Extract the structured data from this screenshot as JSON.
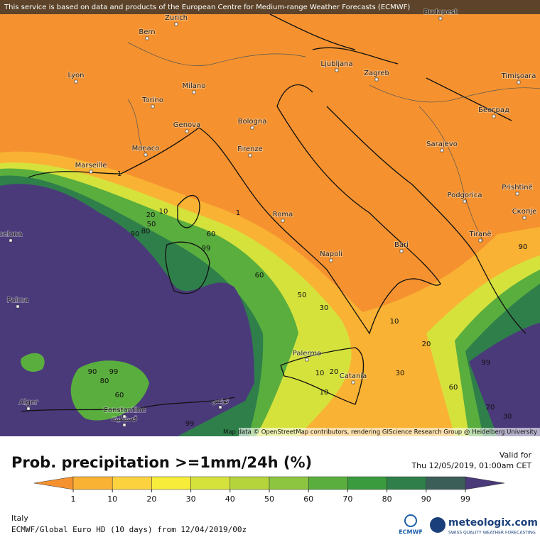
{
  "notice": "This service is based on data and products of the European Centre for Medium-range Weather Forecasts (ECMWF)",
  "cities": [
    "Budapest",
    "Zurich",
    "Bern",
    "Lyon",
    "Milano",
    "Ljubljana",
    "Zagreb",
    "Timişoara",
    "Torino",
    "Београд",
    "Bologna",
    "Genova",
    "Sarajevo",
    "Monaco",
    "Firenze",
    "Marseille",
    "Podgorica",
    "Prishtinë",
    "Roma",
    "Скопје",
    "celona",
    "Tiranë",
    "Bari",
    "Napoli",
    "Palma",
    "Palermo",
    "Catania",
    "Alger",
    "Constantine",
    "قسنطينة",
    "تونس"
  ],
  "contour_labels": [
    1,
    10,
    20,
    50,
    80,
    90,
    99,
    60,
    60,
    1,
    50,
    30,
    10,
    20,
    30,
    10,
    20,
    10,
    60,
    99,
    20,
    30,
    90,
    80,
    99,
    60,
    99,
    90
  ],
  "attribution": "Map data © OpenStreetMap contributors, rendering GIScience Research Group @ Heidelberg University",
  "title": "Prob. precipitation >=1mm/24h (%)",
  "valid_label": "Valid for",
  "valid_time": "Thu 12/05/2019, 01:00am CET",
  "legend": {
    "ticks": [
      1,
      10,
      20,
      30,
      40,
      50,
      60,
      70,
      80,
      90,
      99
    ],
    "colors": [
      "#f5922f",
      "#f9b233",
      "#fcd33f",
      "#f7ec3a",
      "#d6e23c",
      "#b5d43b",
      "#8dc540",
      "#5aae3e",
      "#3a9a3e",
      "#2f7f4a",
      "#3c5e58",
      "#4a3a7a"
    ]
  },
  "region": "Italy",
  "model_run": "ECMWF/Global Euro HD (10 days)  from  12/04/2019/00z",
  "logos": {
    "ecmwf": "ECMWF",
    "brand": "meteologix.com",
    "tagline": "SWISS QUALITY WEATHER FORECASTING"
  }
}
